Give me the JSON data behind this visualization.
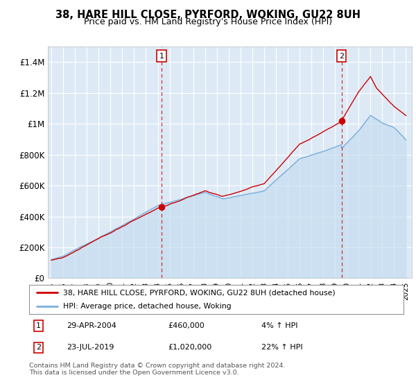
{
  "title": "38, HARE HILL CLOSE, PYRFORD, WOKING, GU22 8UH",
  "subtitle": "Price paid vs. HM Land Registry's House Price Index (HPI)",
  "ylim": [
    0,
    1500000
  ],
  "yticks": [
    0,
    200000,
    400000,
    600000,
    800000,
    1000000,
    1200000,
    1400000
  ],
  "ytick_labels": [
    "£0",
    "£200K",
    "£400K",
    "£600K",
    "£800K",
    "£1M",
    "£1.2M",
    "£1.4M"
  ],
  "sale1_date": 2004.32,
  "sale1_price": 460000,
  "sale1_annotation": "29-APR-2004",
  "sale1_amount": "£460,000",
  "sale1_hpi": "4% ↑ HPI",
  "sale2_date": 2019.55,
  "sale2_price": 1020000,
  "sale2_annotation": "23-JUL-2019",
  "sale2_amount": "£1,020,000",
  "sale2_hpi": "22% ↑ HPI",
  "red_line_color": "#cc0000",
  "blue_line_color": "#7aaddb",
  "blue_fill_color": "#c5ddf0",
  "background_color": "#ffffff",
  "plot_bg_color": "#ddeaf6",
  "grid_color": "#ffffff",
  "legend_label_red": "38, HARE HILL CLOSE, PYRFORD, WOKING, GU22 8UH (detached house)",
  "legend_label_blue": "HPI: Average price, detached house, Woking",
  "footer": "Contains HM Land Registry data © Crown copyright and database right 2024.\nThis data is licensed under the Open Government Licence v3.0."
}
